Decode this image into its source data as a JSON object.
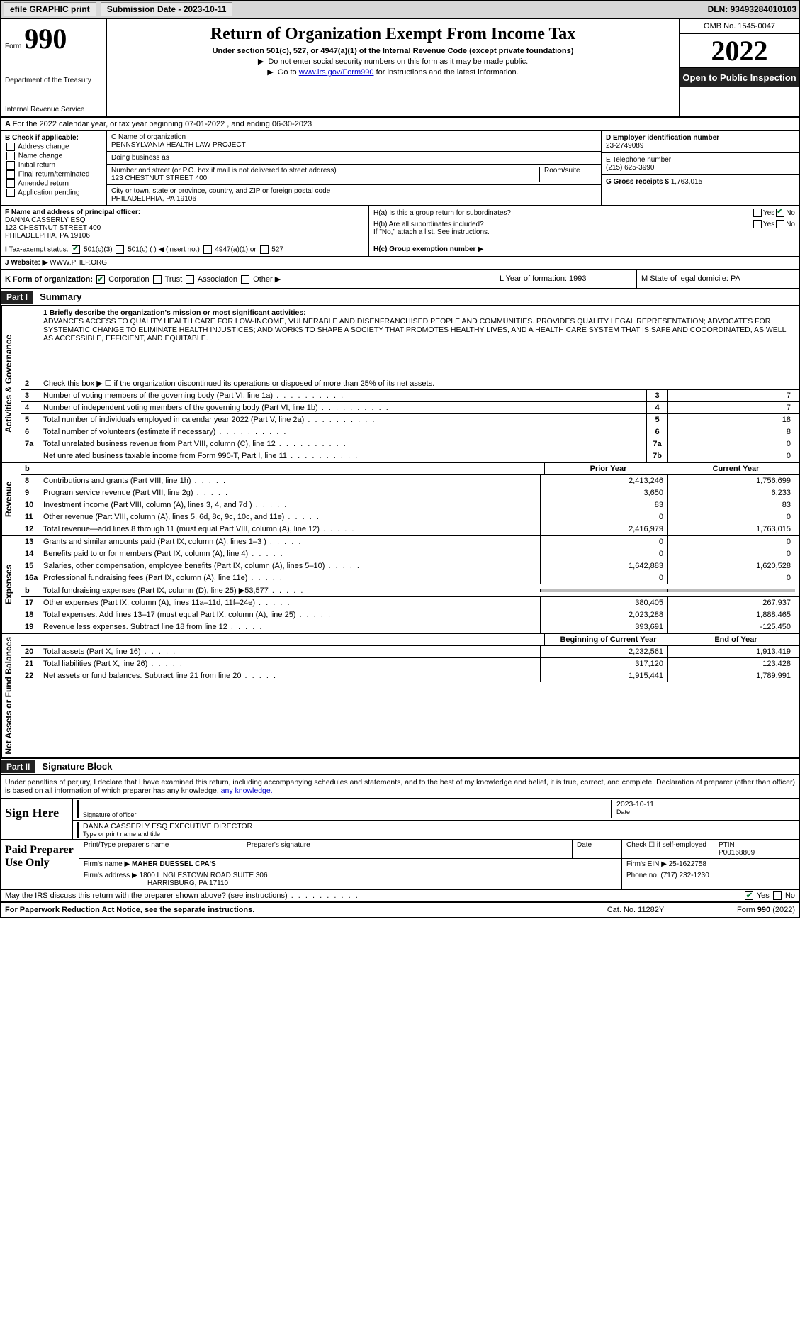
{
  "topbar": {
    "efile": "efile GRAPHIC print",
    "submission": "Submission Date - 2023-10-11",
    "dln": "DLN: 93493284010103"
  },
  "header": {
    "form_label": "Form",
    "form_number": "990",
    "title": "Return of Organization Exempt From Income Tax",
    "subtitle": "Under section 501(c), 527, or 4947(a)(1) of the Internal Revenue Code (except private foundations)",
    "note1": "Do not enter social security numbers on this form as it may be made public.",
    "note2_pre": "Go to ",
    "note2_link": "www.irs.gov/Form990",
    "note2_post": " for instructions and the latest information.",
    "dept": "Department of the Treasury",
    "irs": "Internal Revenue Service",
    "omb": "OMB No. 1545-0047",
    "year": "2022",
    "open": "Open to Public Inspection"
  },
  "rowA": "For the 2022 calendar year, or tax year beginning 07-01-2022    , and ending 06-30-2023",
  "colB": {
    "title": "B Check if applicable:",
    "items": [
      "Address change",
      "Name change",
      "Initial return",
      "Final return/terminated",
      "Amended return",
      "Application pending"
    ]
  },
  "colC": {
    "name_lbl": "C Name of organization",
    "name": "PENNSYLVANIA HEALTH LAW PROJECT",
    "dba_lbl": "Doing business as",
    "dba": "",
    "addr_lbl": "Number and street (or P.O. box if mail is not delivered to street address)",
    "room_lbl": "Room/suite",
    "addr": "123 CHESTNUT STREET 400",
    "city_lbl": "City or town, state or province, country, and ZIP or foreign postal code",
    "city": "PHILADELPHIA, PA  19106"
  },
  "colD": {
    "d_lbl": "D Employer identification number",
    "d_val": "23-2749089",
    "e_lbl": "E Telephone number",
    "e_val": "(215) 625-3990",
    "g_lbl": "G Gross receipts $",
    "g_val": "1,763,015"
  },
  "rowF": {
    "lbl": "F Name and address of principal officer:",
    "name": "DANNA CASSERLY ESQ",
    "addr1": "123 CHESTNUT STREET 400",
    "addr2": "PHILADELPHIA, PA  19106"
  },
  "rowH": {
    "ha": "H(a)  Is this a group return for subordinates?",
    "hb": "H(b)  Are all subordinates included?",
    "hb_note": "If \"No,\" attach a list. See instructions.",
    "hc": "H(c)  Group exemption number ▶",
    "yes": "Yes",
    "no": "No"
  },
  "rowI": {
    "lbl": "Tax-exempt status:",
    "opt1": "501(c)(3)",
    "opt2": "501(c) (   ) ◀ (insert no.)",
    "opt3": "4947(a)(1) or",
    "opt4": "527"
  },
  "rowJ": {
    "lbl": "J  Website: ▶",
    "val": "WWW.PHLP.ORG"
  },
  "rowK": {
    "lbl": "K Form of organization:",
    "opts": [
      "Corporation",
      "Trust",
      "Association",
      "Other ▶"
    ],
    "L": "L Year of formation: 1993",
    "M": "M State of legal domicile: PA"
  },
  "part1": {
    "label": "Part I",
    "title": "Summary"
  },
  "mission": {
    "lbl": "1  Briefly describe the organization's mission or most significant activities:",
    "text": "ADVANCES ACCESS TO QUALITY HEALTH CARE FOR LOW-INCOME, VULNERABLE AND DISENFRANCHISED PEOPLE AND COMMUNITIES. PROVIDES QUALITY LEGAL REPRESENTATION; ADVOCATES FOR SYSTEMATIC CHANGE TO ELIMINATE HEALTH INJUSTICES; AND WORKS TO SHAPE A SOCIETY THAT PROMOTES HEALTHY LIVES, AND A HEALTH CARE SYSTEM THAT IS SAFE AND COOORDINATED, AS WELL AS ACCESSIBLE, EFFICIENT, AND EQUITABLE."
  },
  "gov_lines": [
    {
      "n": "2",
      "d": "Check this box ▶ ☐  if the organization discontinued its operations or disposed of more than 25% of its net assets.",
      "box": "",
      "v": ""
    },
    {
      "n": "3",
      "d": "Number of voting members of the governing body (Part VI, line 1a)",
      "box": "3",
      "v": "7"
    },
    {
      "n": "4",
      "d": "Number of independent voting members of the governing body (Part VI, line 1b)",
      "box": "4",
      "v": "7"
    },
    {
      "n": "5",
      "d": "Total number of individuals employed in calendar year 2022 (Part V, line 2a)",
      "box": "5",
      "v": "18"
    },
    {
      "n": "6",
      "d": "Total number of volunteers (estimate if necessary)",
      "box": "6",
      "v": "8"
    },
    {
      "n": "7a",
      "d": "Total unrelated business revenue from Part VIII, column (C), line 12",
      "box": "7a",
      "v": "0"
    },
    {
      "n": "",
      "d": "Net unrelated business taxable income from Form 990-T, Part I, line 11",
      "box": "7b",
      "v": "0"
    }
  ],
  "col_hdrs": {
    "b": "b",
    "prior": "Prior Year",
    "curr": "Current Year"
  },
  "rev_lines": [
    {
      "n": "8",
      "d": "Contributions and grants (Part VIII, line 1h)",
      "p": "2,413,246",
      "c": "1,756,699"
    },
    {
      "n": "9",
      "d": "Program service revenue (Part VIII, line 2g)",
      "p": "3,650",
      "c": "6,233"
    },
    {
      "n": "10",
      "d": "Investment income (Part VIII, column (A), lines 3, 4, and 7d )",
      "p": "83",
      "c": "83"
    },
    {
      "n": "11",
      "d": "Other revenue (Part VIII, column (A), lines 5, 6d, 8c, 9c, 10c, and 11e)",
      "p": "0",
      "c": "0"
    },
    {
      "n": "12",
      "d": "Total revenue—add lines 8 through 11 (must equal Part VIII, column (A), line 12)",
      "p": "2,416,979",
      "c": "1,763,015"
    }
  ],
  "exp_lines": [
    {
      "n": "13",
      "d": "Grants and similar amounts paid (Part IX, column (A), lines 1–3 )",
      "p": "0",
      "c": "0"
    },
    {
      "n": "14",
      "d": "Benefits paid to or for members (Part IX, column (A), line 4)",
      "p": "0",
      "c": "0"
    },
    {
      "n": "15",
      "d": "Salaries, other compensation, employee benefits (Part IX, column (A), lines 5–10)",
      "p": "1,642,883",
      "c": "1,620,528"
    },
    {
      "n": "16a",
      "d": "Professional fundraising fees (Part IX, column (A), line 11e)",
      "p": "0",
      "c": "0"
    },
    {
      "n": "b",
      "d": "Total fundraising expenses (Part IX, column (D), line 25) ▶53,577",
      "p": "",
      "c": "",
      "grey": true
    },
    {
      "n": "17",
      "d": "Other expenses (Part IX, column (A), lines 11a–11d, 11f–24e)",
      "p": "380,405",
      "c": "267,937"
    },
    {
      "n": "18",
      "d": "Total expenses. Add lines 13–17 (must equal Part IX, column (A), line 25)",
      "p": "2,023,288",
      "c": "1,888,465"
    },
    {
      "n": "19",
      "d": "Revenue less expenses. Subtract line 18 from line 12",
      "p": "393,691",
      "c": "-125,450"
    }
  ],
  "na_hdrs": {
    "beg": "Beginning of Current Year",
    "end": "End of Year"
  },
  "na_lines": [
    {
      "n": "20",
      "d": "Total assets (Part X, line 16)",
      "p": "2,232,561",
      "c": "1,913,419"
    },
    {
      "n": "21",
      "d": "Total liabilities (Part X, line 26)",
      "p": "317,120",
      "c": "123,428"
    },
    {
      "n": "22",
      "d": "Net assets or fund balances. Subtract line 21 from line 20",
      "p": "1,915,441",
      "c": "1,789,991"
    }
  ],
  "part2": {
    "label": "Part II",
    "title": "Signature Block"
  },
  "sig": {
    "decl": "Under penalties of perjury, I declare that I have examined this return, including accompanying schedules and statements, and to the best of my knowledge and belief, it is true, correct, and complete. Declaration of preparer (other than officer) is based on all information of which preparer has any knowledge.",
    "sign_here": "Sign Here",
    "sig_lbl": "Signature of officer",
    "date_lbl": "Date",
    "date_val": "2023-10-11",
    "name": "DANNA CASSERLY ESQ  EXECUTIVE DIRECTOR",
    "name_lbl": "Type or print name and title"
  },
  "prep": {
    "label": "Paid Preparer Use Only",
    "h1": "Print/Type preparer's name",
    "h2": "Preparer's signature",
    "h3": "Date",
    "h4": "Check ☐ if self-employed",
    "h5": "PTIN",
    "ptin": "P00168809",
    "firm_lbl": "Firm's name   ▶",
    "firm": "MAHER DUESSEL CPA'S",
    "ein_lbl": "Firm's EIN ▶",
    "ein": "25-1622758",
    "addr_lbl": "Firm's address ▶",
    "addr1": "1800 LINGLESTOWN ROAD SUITE 306",
    "addr2": "HARRISBURG, PA  17110",
    "phone_lbl": "Phone no.",
    "phone": "(717) 232-1230"
  },
  "discuss": "May the IRS discuss this return with the preparer shown above? (see instructions)",
  "footer": {
    "pra": "For Paperwork Reduction Act Notice, see the separate instructions.",
    "cat": "Cat. No. 11282Y",
    "form": "Form 990 (2022)"
  },
  "tabs": {
    "act": "Activities & Governance",
    "rev": "Revenue",
    "exp": "Expenses",
    "na": "Net Assets or Fund Balances"
  }
}
